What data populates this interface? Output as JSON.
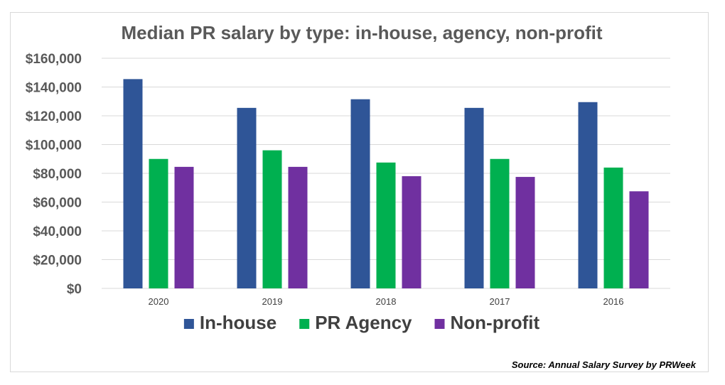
{
  "chart_data": {
    "type": "bar",
    "title": "Median PR salary by type: in-house, agency, non-profit",
    "categories": [
      "2020",
      "2019",
      "2018",
      "2017",
      "2016"
    ],
    "series": [
      {
        "name": "In-house",
        "color": "#2F5597",
        "values": [
          145500,
          125500,
          131500,
          125500,
          129500
        ]
      },
      {
        "name": "PR Agency",
        "color": "#00B050",
        "values": [
          90000,
          96000,
          87500,
          90000,
          84000
        ]
      },
      {
        "name": "Non-profit",
        "color": "#7030A0",
        "values": [
          84500,
          84500,
          78000,
          77500,
          67500
        ]
      }
    ],
    "ylim": [
      0,
      160000
    ],
    "yticks": [
      0,
      20000,
      40000,
      60000,
      80000,
      100000,
      120000,
      140000,
      160000
    ],
    "ytick_labels": [
      "$0",
      "$20,000",
      "$40,000",
      "$60,000",
      "$80,000",
      "$100,000",
      "$120,000",
      "$140,000",
      "$160,000"
    ],
    "grid": true,
    "legend_position": "bottom",
    "source": "Source: Annual Salary Survey by PRWeek"
  }
}
